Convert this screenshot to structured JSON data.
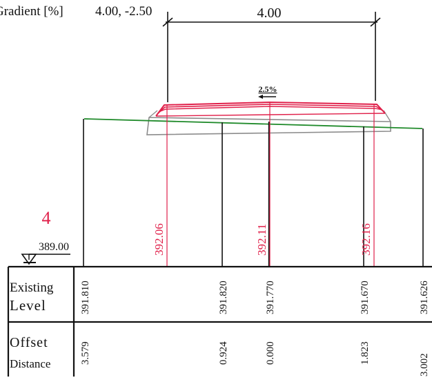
{
  "header": {
    "gradient_label": "Gradient [%]",
    "gradient_value": "4.00, -2.50"
  },
  "dimension": {
    "width_label": "4.00"
  },
  "crossfall": {
    "label": "2.5%"
  },
  "section": {
    "number": "4"
  },
  "datum": {
    "value": "389.00"
  },
  "design_levels": [
    "392.06",
    "392.11",
    "392.16"
  ],
  "table": {
    "existing_level_label_1": "Existing",
    "existing_level_label_2": "Level",
    "offset_label_1": "Offset",
    "offset_label_2": "Distance",
    "existing_levels": [
      "391.810",
      "391.820",
      "391.770",
      "391.670",
      "391.626"
    ],
    "offsets": [
      "3.579",
      "0.924",
      "0.000",
      "1.823",
      "3.002"
    ]
  },
  "colors": {
    "ink": "#111111",
    "design": "#e0204a",
    "ground": "#1f8a2a",
    "subgrade": "#8c8c8c"
  }
}
